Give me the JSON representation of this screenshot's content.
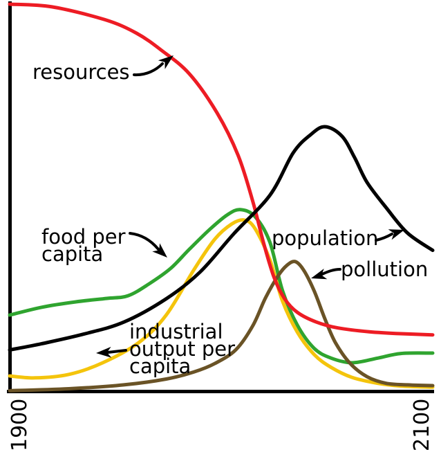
{
  "figure": {
    "background": "#ffffff"
  },
  "axes": {
    "x_tick_labels": [
      "1900",
      "2100"
    ]
  },
  "annotations": {
    "resources": "resources",
    "food_per_capita": "food per\ncapita",
    "population": "population",
    "pollution": "pollution",
    "industrial_output": "industrial\noutput per\ncapita"
  },
  "chart_data": {
    "type": "line",
    "title": "",
    "xlabel": "",
    "ylabel": "",
    "xlim": [
      1900,
      2100
    ],
    "ylim": [
      0,
      100
    ],
    "x_ticks": [
      1900,
      2100
    ],
    "grid": false,
    "legend_position": "inline-annotations-with-arrows",
    "series": [
      {
        "id": "food-per-capita",
        "name": "food per capita",
        "color": "#2fa42f",
        "points": [
          [
            1900,
            19.8
          ],
          [
            1915,
            21.8
          ],
          [
            1931,
            23.2
          ],
          [
            1946,
            24.1
          ],
          [
            1956,
            24.8
          ],
          [
            1966,
            27.9
          ],
          [
            1976,
            31.8
          ],
          [
            1985,
            36.8
          ],
          [
            1995,
            42.1
          ],
          [
            2003,
            45.7
          ],
          [
            2009,
            47.0
          ],
          [
            2016,
            45.2
          ],
          [
            2023,
            38.6
          ],
          [
            2029,
            26.1
          ],
          [
            2036,
            17.2
          ],
          [
            2044,
            11.2
          ],
          [
            2052,
            8.7
          ],
          [
            2062,
            7.5
          ],
          [
            2074,
            8.7
          ],
          [
            2085,
            9.9
          ],
          [
            2100,
            10.0
          ]
        ]
      },
      {
        "id": "industrial-output-per-capita",
        "name": "industrial output per capita",
        "color": "#f4c40c",
        "points": [
          [
            1900,
            4.1
          ],
          [
            1912,
            3.6
          ],
          [
            1928,
            4.5
          ],
          [
            1944,
            7.5
          ],
          [
            1961,
            12.7
          ],
          [
            1974,
            19.8
          ],
          [
            1987,
            31.4
          ],
          [
            1997,
            39.4
          ],
          [
            2005,
            43.3
          ],
          [
            2011,
            44.3
          ],
          [
            2016,
            42.1
          ],
          [
            2023,
            34.1
          ],
          [
            2029,
            23.4
          ],
          [
            2036,
            15.4
          ],
          [
            2044,
            9.6
          ],
          [
            2052,
            6.3
          ],
          [
            2062,
            3.7
          ],
          [
            2074,
            2.2
          ],
          [
            2085,
            1.5
          ],
          [
            2100,
            1.2
          ]
        ]
      },
      {
        "id": "pollution",
        "name": "pollution",
        "color": "#6a5326",
        "points": [
          [
            1900,
            0.3
          ],
          [
            1928,
            0.8
          ],
          [
            1954,
            1.8
          ],
          [
            1974,
            3.3
          ],
          [
            1987,
            5.1
          ],
          [
            1997,
            7.3
          ],
          [
            2007,
            10.9
          ],
          [
            2015,
            17.1
          ],
          [
            2021,
            24.3
          ],
          [
            2027,
            30.0
          ],
          [
            2031,
            32.6
          ],
          [
            2035,
            33.6
          ],
          [
            2039,
            31.4
          ],
          [
            2044,
            26.0
          ],
          [
            2049,
            18.9
          ],
          [
            2054,
            12.7
          ],
          [
            2061,
            7.3
          ],
          [
            2069,
            3.9
          ],
          [
            2078,
            2.2
          ],
          [
            2088,
            1.8
          ],
          [
            2100,
            1.6
          ]
        ]
      },
      {
        "id": "resources",
        "name": "resources",
        "color": "#ed1c24",
        "points": [
          [
            1900,
            100
          ],
          [
            1920,
            99.3
          ],
          [
            1945,
            96
          ],
          [
            1960,
            92.5
          ],
          [
            1972,
            88
          ],
          [
            1985,
            82
          ],
          [
            1998,
            72
          ],
          [
            2008,
            61
          ],
          [
            2015,
            49
          ],
          [
            2020,
            38.5
          ],
          [
            2025,
            29.5
          ],
          [
            2030,
            24
          ],
          [
            2036,
            20.5
          ],
          [
            2045,
            18
          ],
          [
            2055,
            16.5
          ],
          [
            2070,
            15.5
          ],
          [
            2085,
            15
          ],
          [
            2100,
            14.7
          ]
        ]
      },
      {
        "id": "population",
        "name": "population",
        "color": "#000000",
        "points": [
          [
            1900,
            10.8
          ],
          [
            1915,
            12.4
          ],
          [
            1935,
            14.9
          ],
          [
            1954,
            18
          ],
          [
            1974,
            24
          ],
          [
            1990,
            30.9
          ],
          [
            2006,
            40.8
          ],
          [
            2023,
            50.7
          ],
          [
            2034,
            61.6
          ],
          [
            2042,
            66.2
          ],
          [
            2049,
            68.4
          ],
          [
            2057,
            66
          ],
          [
            2063,
            60.5
          ],
          [
            2069,
            54
          ],
          [
            2078,
            47.5
          ],
          [
            2088,
            41
          ],
          [
            2100,
            36.5
          ]
        ]
      }
    ]
  }
}
